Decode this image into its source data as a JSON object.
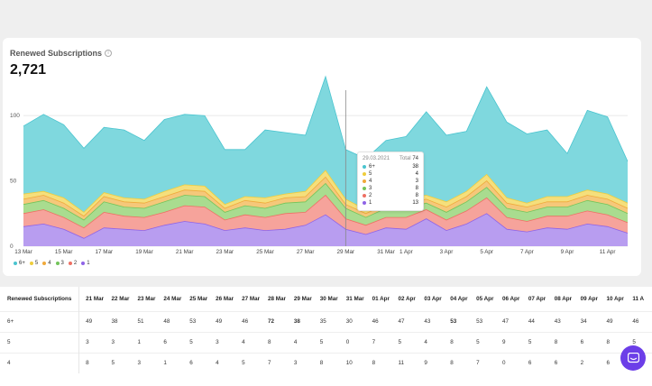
{
  "card": {
    "title": "Renewed Subscriptions",
    "total": "2,721"
  },
  "colors": {
    "s6": "#7fd8de",
    "s5": "#f5df7c",
    "s4": "#f5c87a",
    "s3": "#a9dc8f",
    "s2": "#f6a39b",
    "s1": "#b89df0",
    "line6": "#49c4cf",
    "line5": "#efcd3b",
    "line4": "#f0a93a",
    "line3": "#73c45a",
    "line2": "#ee6f63",
    "line1": "#8f63e6",
    "accent": "#6c3ee8"
  },
  "legend": [
    {
      "label": "6+",
      "color": "#49c4cf"
    },
    {
      "label": "5",
      "color": "#efcd3b"
    },
    {
      "label": "4",
      "color": "#f0a93a"
    },
    {
      "label": "3",
      "color": "#73c45a"
    },
    {
      "label": "2",
      "color": "#ee6f63"
    },
    {
      "label": "1",
      "color": "#8f63e6"
    }
  ],
  "tooltip": {
    "date": "29.03.2021",
    "total_label": "Total",
    "total": "74",
    "rows": [
      {
        "label": "6+",
        "value": "38",
        "color": "#49c4cf"
      },
      {
        "label": "5",
        "value": "4",
        "color": "#efcd3b"
      },
      {
        "label": "4",
        "value": "3",
        "color": "#f0a93a"
      },
      {
        "label": "3",
        "value": "8",
        "color": "#73c45a"
      },
      {
        "label": "2",
        "value": "8",
        "color": "#ee6f63"
      },
      {
        "label": "1",
        "value": "13",
        "color": "#8f63e6"
      }
    ]
  },
  "chart_data": {
    "type": "area",
    "stacked": true,
    "title": "Renewed Subscriptions",
    "x": [
      "13 Mar",
      "14 Mar",
      "15 Mar",
      "16 Mar",
      "17 Mar",
      "18 Mar",
      "19 Mar",
      "20 Mar",
      "21 Mar",
      "22 Mar",
      "23 Mar",
      "24 Mar",
      "25 Mar",
      "26 Mar",
      "27 Mar",
      "28 Mar",
      "29 Mar",
      "30 Mar",
      "31 Mar",
      "1 Apr",
      "2 Apr",
      "3 Apr",
      "4 Apr",
      "5 Apr",
      "6 Apr",
      "7 Apr",
      "8 Apr",
      "9 Apr",
      "10 Apr",
      "11 Apr",
      "12 Apr"
    ],
    "x_tick_labels": [
      "13 Mar",
      "15 Mar",
      "17 Mar",
      "19 Mar",
      "21 Mar",
      "23 Mar",
      "25 Mar",
      "27 Mar",
      "29 Mar",
      "31 Mar",
      "1 Apr",
      "3 Apr",
      "5 Apr",
      "7 Apr",
      "9 Apr",
      "11 Apr"
    ],
    "y_ticks": [
      "0",
      "50",
      "100"
    ],
    "ylim": [
      0,
      125
    ],
    "grid": true,
    "legend_position": "bottom-left",
    "series": [
      {
        "name": "1",
        "values": [
          15,
          17,
          13,
          6,
          14,
          13,
          12,
          16,
          19,
          17,
          12,
          14,
          12,
          13,
          16,
          24,
          13,
          9,
          14,
          13,
          21,
          12,
          17,
          25,
          13,
          11,
          14,
          13,
          17,
          15,
          10
        ]
      },
      {
        "name": "2",
        "values": [
          10,
          11,
          9,
          8,
          12,
          10,
          10,
          10,
          12,
          13,
          8,
          10,
          10,
          12,
          10,
          15,
          8,
          7,
          8,
          9,
          7,
          8,
          10,
          12,
          9,
          8,
          9,
          10,
          10,
          9,
          8
        ]
      },
      {
        "name": "3",
        "values": [
          7,
          7,
          7,
          6,
          8,
          7,
          7,
          8,
          8,
          8,
          6,
          7,
          7,
          8,
          8,
          9,
          8,
          6,
          7,
          7,
          5,
          6,
          7,
          8,
          7,
          7,
          7,
          7,
          8,
          8,
          7
        ]
      },
      {
        "name": "4",
        "values": [
          4,
          4,
          4,
          3,
          4,
          4,
          4,
          4,
          4,
          4,
          3,
          4,
          4,
          4,
          4,
          5,
          3,
          3,
          3,
          4,
          3,
          4,
          4,
          5,
          4,
          4,
          4,
          4,
          4,
          4,
          4
        ]
      },
      {
        "name": "5",
        "values": [
          4,
          3,
          4,
          3,
          3,
          3,
          3,
          4,
          4,
          4,
          3,
          3,
          4,
          3,
          4,
          5,
          4,
          3,
          3,
          4,
          3,
          4,
          4,
          5,
          4,
          3,
          4,
          4,
          4,
          4,
          4
        ]
      },
      {
        "name": "6+",
        "values": [
          52,
          59,
          56,
          49,
          50,
          52,
          45,
          55,
          54,
          54,
          42,
          36,
          52,
          47,
          43,
          72,
          38,
          39,
          46,
          47,
          64,
          51,
          46,
          67,
          58,
          53,
          51,
          33,
          61,
          59,
          32
        ]
      }
    ]
  },
  "table": {
    "header_label": "Renewed Subscriptions",
    "columns": [
      "21 Mar",
      "22 Mar",
      "23 Mar",
      "24 Mar",
      "25 Mar",
      "26 Mar",
      "27 Mar",
      "28 Mar",
      "29 Mar",
      "30 Mar",
      "31 Mar",
      "01 Apr",
      "02 Apr",
      "03 Apr",
      "04 Apr",
      "05 Apr",
      "06 Apr",
      "07 Apr",
      "08 Apr",
      "09 Apr",
      "10 Apr",
      "11 A"
    ],
    "rows": [
      {
        "label": "6+",
        "values": [
          "49",
          "38",
          "51",
          "48",
          "53",
          "49",
          "46",
          "72",
          "38",
          "35",
          "30",
          "46",
          "47",
          "43",
          "53",
          "53",
          "47",
          "44",
          "43",
          "34",
          "49",
          "46"
        ]
      },
      {
        "label": "5",
        "values": [
          "3",
          "3",
          "1",
          "6",
          "5",
          "3",
          "4",
          "8",
          "4",
          "5",
          "0",
          "7",
          "5",
          "4",
          "8",
          "5",
          "9",
          "5",
          "8",
          "6",
          "8",
          "5"
        ]
      },
      {
        "label": "4",
        "values": [
          "8",
          "5",
          "3",
          "1",
          "6",
          "4",
          "5",
          "7",
          "3",
          "8",
          "10",
          "8",
          "11",
          "9",
          "8",
          "7",
          "0",
          "6",
          "6",
          "2",
          "6",
          "4"
        ]
      }
    ]
  }
}
